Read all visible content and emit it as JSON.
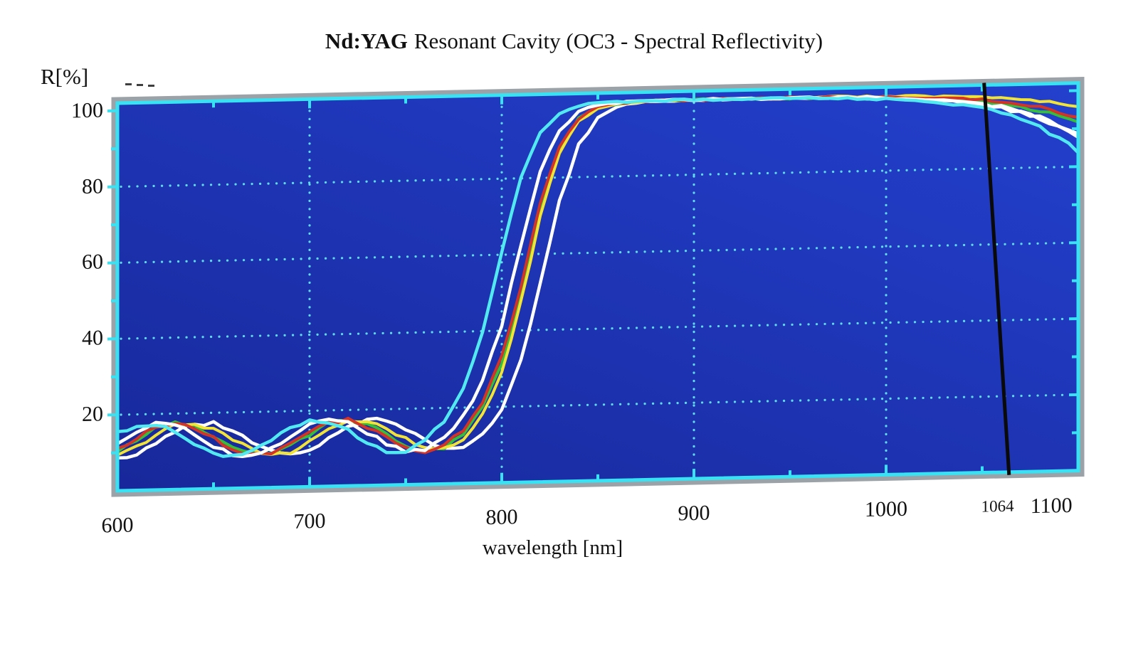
{
  "title": {
    "bold": "Nd:YAG",
    "rest": "Resonant Cavity (OC3 - Spectral Reflectivity)"
  },
  "y_axis": {
    "title": "R[%]",
    "tick_labels": [
      {
        "text": "100",
        "v": 100
      },
      {
        "text": "80",
        "v": 80
      },
      {
        "text": "60",
        "v": 60
      },
      {
        "text": "40",
        "v": 40
      },
      {
        "text": "20",
        "v": 20
      }
    ]
  },
  "x_axis": {
    "title": "wavelength [nm]",
    "tick_labels": [
      {
        "text": "600",
        "nm": 600
      },
      {
        "text": "700",
        "nm": 700
      },
      {
        "text": "800",
        "nm": 800
      },
      {
        "text": "900",
        "nm": 900
      },
      {
        "text": "1000",
        "nm": 1000
      },
      {
        "text": "1064",
        "nm": 1058,
        "small": true
      },
      {
        "text": "1100",
        "nm": 1086
      }
    ]
  },
  "style": {
    "page_bg": "#ffffff",
    "plot_bg_bottom": "#18289b",
    "plot_bg_top": "#2340cd",
    "grid_dot": "#5fdbe9",
    "frame": "#38e2f2",
    "shadow": "#9ba2a8",
    "text": "#111111",
    "annotation": "#0a0a0a"
  },
  "chart_data": {
    "type": "line",
    "title": "Nd:YAG Resonant Cavity (OC3 - Spectral Reflectivity)",
    "xlabel": "wavelength [nm]",
    "ylabel": "R[%]",
    "xlim": [
      600,
      1100
    ],
    "ylim": [
      0,
      102
    ],
    "grid": "dotted cyan on blue, framed cyan box with gray drop shadow",
    "legend": "none",
    "x_gridlines": [
      700,
      800,
      900,
      1000
    ],
    "y_gridlines": [
      20,
      40,
      60,
      80
    ],
    "x_major_ticks": [
      700,
      800,
      900,
      1000
    ],
    "x_minor_ticks": [
      650,
      750,
      850,
      950,
      1050
    ],
    "y_major_ticks": [
      20,
      40,
      60,
      80,
      100
    ],
    "y_minor_ticks": [
      10,
      30,
      50,
      70,
      90
    ],
    "annotation_line": {
      "label": "1064",
      "x_bottom_nm": 1064,
      "x_top_nm": 1051,
      "color": "#0a0a0a"
    },
    "x": [
      600,
      610,
      620,
      630,
      640,
      650,
      660,
      670,
      680,
      690,
      700,
      710,
      720,
      730,
      740,
      750,
      760,
      770,
      780,
      790,
      800,
      810,
      820,
      830,
      840,
      850,
      860,
      870,
      880,
      890,
      900,
      910,
      920,
      930,
      940,
      950,
      960,
      970,
      980,
      990,
      1000,
      1010,
      1020,
      1030,
      1040,
      1050,
      1060,
      1070,
      1080,
      1090,
      1100
    ],
    "series": [
      {
        "name": "white-2",
        "color": "#ffffff",
        "width": 4.5,
        "values": [
          8.5,
          9.3,
          12.1,
          15.2,
          17.2,
          17.2,
          15.2,
          12.0,
          9.4,
          8.5,
          9.8,
          12.7,
          15.7,
          17.4,
          17.0,
          14.6,
          11.4,
          9.0,
          9.4,
          12.5,
          19.5,
          32.3,
          51.9,
          73.6,
          88.5,
          95.7,
          98.3,
          99.2,
          99.6,
          99.7,
          99.7,
          99.7,
          99.7,
          99.6,
          99.6,
          99.6,
          99.5,
          99.5,
          99.4,
          99.2,
          99.0,
          98.8,
          98.5,
          98.1,
          97.5,
          96.8,
          95.8,
          94.5,
          92.8,
          90.6,
          87.6
        ]
      },
      {
        "name": "green",
        "color": "#36bd39",
        "width": 4,
        "values": [
          10.3,
          13.3,
          16.3,
          17.5,
          16.5,
          13.9,
          10.8,
          8.8,
          8.8,
          10.8,
          13.9,
          16.7,
          17.5,
          16.1,
          13.3,
          10.4,
          8.6,
          9.6,
          13.3,
          20.1,
          31.4,
          49.7,
          71.2,
          87.3,
          95.2,
          98.1,
          99.1,
          99.5,
          99.7,
          99.7,
          99.7,
          99.7,
          99.7,
          99.7,
          99.7,
          99.6,
          99.6,
          99.6,
          99.5,
          99.4,
          99.3,
          99.1,
          98.9,
          98.6,
          98.2,
          97.7,
          97.0,
          96.1,
          94.9,
          93.4,
          91.3
        ]
      },
      {
        "name": "yellow",
        "color": "#f2e337",
        "width": 4,
        "values": [
          8.9,
          11.4,
          14.6,
          17.0,
          17.4,
          15.5,
          12.8,
          9.9,
          8.5,
          9.3,
          12.1,
          15.2,
          17.2,
          17.2,
          15.2,
          12.0,
          9.4,
          9.1,
          11.6,
          17.8,
          29.0,
          47.4,
          69.7,
          86.3,
          94.8,
          98.0,
          99.1,
          99.5,
          99.7,
          99.7,
          99.7,
          99.7,
          99.7,
          99.7,
          99.7,
          99.7,
          99.7,
          99.7,
          99.7,
          99.6,
          99.6,
          99.5,
          99.4,
          99.2,
          99.0,
          98.8,
          98.5,
          98.1,
          97.5,
          96.8,
          95.8
        ]
      },
      {
        "name": "red",
        "color": "#d23527",
        "width": 4,
        "values": [
          10.8,
          13.9,
          16.7,
          17.5,
          16.1,
          13.3,
          10.4,
          8.6,
          9.0,
          11.4,
          14.6,
          17.0,
          17.4,
          15.5,
          12.8,
          9.9,
          8.5,
          10.0,
          14.3,
          21.3,
          33.0,
          51.7,
          73.2,
          88.3,
          95.6,
          98.2,
          99.2,
          99.5,
          99.7,
          99.7,
          99.7,
          99.7,
          99.7,
          99.7,
          99.7,
          99.7,
          99.7,
          99.6,
          99.5,
          99.5,
          99.4,
          99.2,
          99.0,
          98.8,
          98.5,
          98.1,
          97.5,
          96.8,
          95.8,
          94.5,
          92.8
        ]
      },
      {
        "name": "white-1",
        "color": "#ffffff",
        "width": 4.5,
        "values": [
          12.7,
          15.7,
          17.4,
          17.0,
          14.6,
          11.4,
          9.0,
          8.6,
          10.3,
          13.3,
          16.2,
          17.5,
          16.6,
          14.0,
          10.8,
          8.8,
          9.2,
          12.0,
          17.6,
          26.6,
          41.4,
          62.6,
          81.7,
          92.6,
          97.3,
          98.9,
          99.4,
          99.6,
          99.7,
          99.7,
          99.7,
          99.7,
          99.7,
          99.6,
          99.6,
          99.6,
          99.6,
          99.5,
          99.4,
          99.3,
          99.1,
          98.9,
          98.6,
          98.2,
          97.6,
          96.9,
          96.0,
          94.8,
          93.2,
          91.1,
          88.3
        ]
      },
      {
        "name": "cyan",
        "color": "#52e9f0",
        "width": 4.5,
        "values": [
          15.2,
          17.2,
          17.2,
          15.2,
          12.0,
          9.4,
          8.5,
          9.8,
          12.7,
          15.7,
          17.4,
          17.0,
          14.6,
          11.4,
          9.0,
          8.6,
          11.5,
          16.6,
          25.2,
          39.6,
          60.5,
          80.2,
          91.9,
          97.0,
          98.8,
          99.4,
          99.6,
          99.7,
          99.7,
          99.7,
          99.7,
          99.7,
          99.7,
          99.7,
          99.6,
          99.6,
          99.5,
          99.4,
          99.2,
          99.0,
          98.8,
          98.5,
          98.1,
          97.5,
          96.8,
          95.8,
          94.5,
          92.9,
          90.6,
          87.7,
          83.8
        ]
      }
    ]
  }
}
